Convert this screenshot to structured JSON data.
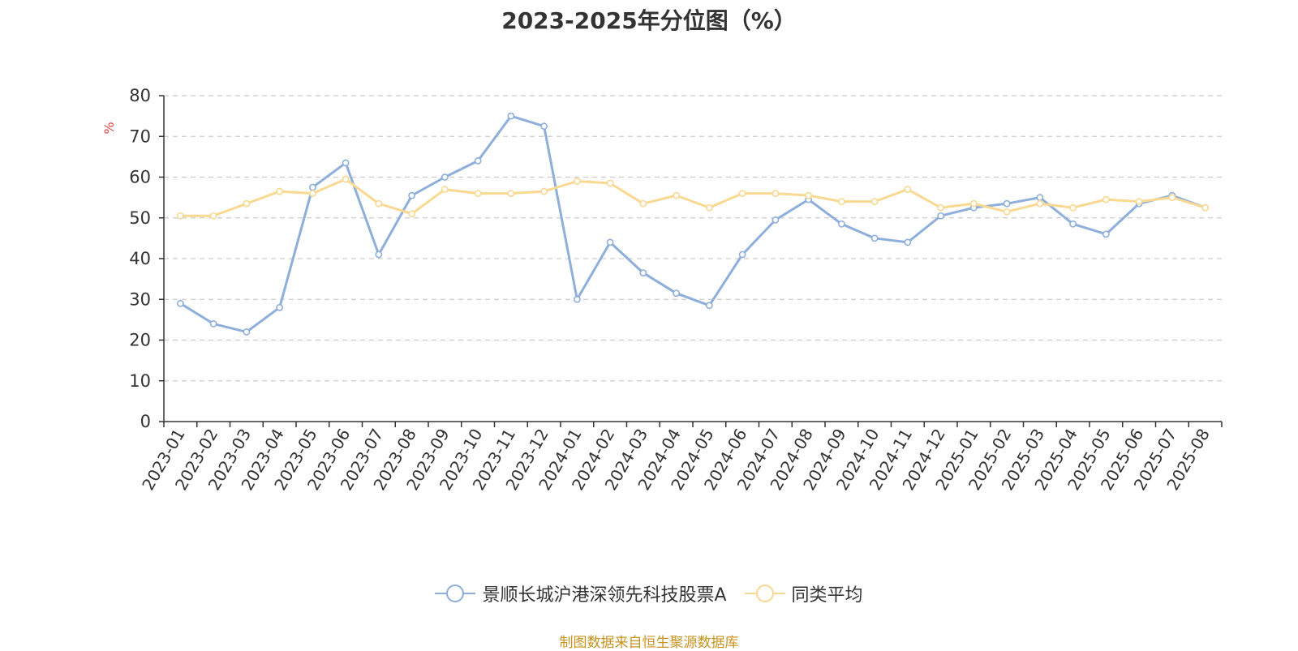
{
  "title": "2023-2025年分位图（%）",
  "source_text": "制图数据来自恒生聚源数据库",
  "colors": {
    "series_a": "#8eaedb",
    "series_b": "#f9d992",
    "unit_label": "#e8423f",
    "source": "#c8941f",
    "grid": "#cccccc",
    "axis": "#333333"
  },
  "chart_data": {
    "type": "line",
    "title": "2023-2025年分位图（%）",
    "ylabel": "%",
    "xlabel": "",
    "ylim": [
      0,
      80
    ],
    "yticks": [
      0,
      10,
      20,
      30,
      40,
      50,
      60,
      70,
      80
    ],
    "grid": true,
    "legend_position": "bottom-center",
    "categories": [
      "2023-01",
      "2023-02",
      "2023-03",
      "2023-04",
      "2023-05",
      "2023-06",
      "2023-07",
      "2023-08",
      "2023-09",
      "2023-10",
      "2023-11",
      "2023-12",
      "2024-01",
      "2024-02",
      "2024-03",
      "2024-04",
      "2024-05",
      "2024-06",
      "2024-07",
      "2024-08",
      "2024-09",
      "2024-10",
      "2024-11",
      "2024-12",
      "2025-01",
      "2025-02",
      "2025-03",
      "2025-04",
      "2025-05",
      "2025-06",
      "2025-07",
      "2025-08"
    ],
    "series": [
      {
        "name": "景顺长城沪港深领先科技股票A",
        "values": [
          29.0,
          24.0,
          22.0,
          28.0,
          57.5,
          63.5,
          41.0,
          55.5,
          60.0,
          64.0,
          75.0,
          72.5,
          30.0,
          44.0,
          36.5,
          31.5,
          28.5,
          41.0,
          49.5,
          54.5,
          48.5,
          45.0,
          44.0,
          50.5,
          52.5,
          53.5,
          55.0,
          48.5,
          46.0,
          53.5,
          55.5,
          52.5
        ]
      },
      {
        "name": "同类平均",
        "values": [
          50.5,
          50.5,
          53.5,
          56.5,
          56.0,
          59.5,
          53.5,
          51.0,
          57.0,
          56.0,
          56.0,
          56.5,
          59.0,
          58.5,
          53.5,
          55.5,
          52.5,
          56.0,
          56.0,
          55.5,
          54.0,
          54.0,
          57.0,
          52.5,
          53.5,
          51.5,
          53.5,
          52.5,
          54.5,
          54.0,
          55.0,
          52.5
        ]
      }
    ]
  }
}
